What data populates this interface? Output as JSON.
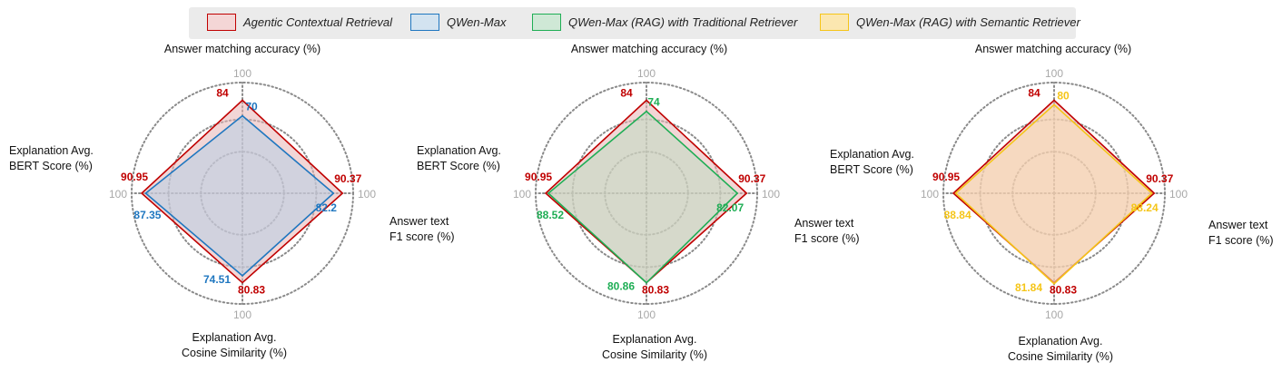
{
  "legend": {
    "items": [
      {
        "label": "Agentic Contextual Retrieval",
        "edge": "#c00000",
        "fill": "#f4d6d6"
      },
      {
        "label": "QWen-Max",
        "edge": "#1f77c0",
        "fill": "#d3e3f0"
      },
      {
        "label": "QWen-Max (RAG) with Traditional Retriever",
        "edge": "#1fae55",
        "fill": "#cfe8d6"
      },
      {
        "label": "QWen-Max (RAG) with Semantic Retriever",
        "edge": "#f5c518",
        "fill": "#fbe7b0"
      }
    ]
  },
  "chart_data": [
    {
      "type": "radar",
      "axes": [
        "Answer matching accuracy (%)",
        "Answer text\nF1 score (%)",
        "Explanation Avg.\nCosine Similarity (%)",
        "Explanation Avg.\nBERT Score (%)"
      ],
      "max_label": "100",
      "range": [
        0,
        100
      ],
      "series": [
        {
          "name": "Agentic Contextual Retrieval",
          "values": [
            84,
            90.37,
            80.83,
            90.95
          ],
          "color": "#c00000",
          "fill": "#e8b4b4"
        },
        {
          "name": "QWen-Max",
          "values": [
            70,
            82.2,
            74.51,
            87.35
          ],
          "color": "#1f77c0",
          "fill": "#b7cfe6"
        }
      ]
    },
    {
      "type": "radar",
      "axes": [
        "Answer matching accuracy (%)",
        "Answer text\nF1 score (%)",
        "Explanation Avg.\nCosine Similarity (%)",
        "Explanation Avg.\nBERT Score (%)"
      ],
      "max_label": "100",
      "range": [
        0,
        100
      ],
      "series": [
        {
          "name": "Agentic Contextual Retrieval",
          "values": [
            84,
            90.37,
            80.83,
            90.95
          ],
          "color": "#c00000",
          "fill": "#e8b4b4"
        },
        {
          "name": "QWen-Max (RAG) with Traditional Retriever",
          "values": [
            74,
            82.07,
            80.86,
            88.52
          ],
          "color": "#1fae55",
          "fill": "#bfdcc2"
        }
      ]
    },
    {
      "type": "radar",
      "axes": [
        "Answer matching accuracy (%)",
        "Answer text\nF1 score (%)",
        "Explanation Avg.\nCosine Similarity (%)",
        "Explanation Avg.\nBERT Score (%)"
      ],
      "max_label": "100",
      "range": [
        0,
        100
      ],
      "series": [
        {
          "name": "Agentic Contextual Retrieval",
          "values": [
            84,
            90.37,
            80.83,
            90.95
          ],
          "color": "#c00000",
          "fill": "#e8b4b4"
        },
        {
          "name": "QWen-Max (RAG) with Semantic Retriever",
          "values": [
            80,
            88.24,
            81.84,
            88.84
          ],
          "color": "#f5c518",
          "fill": "#f9dcae"
        }
      ]
    }
  ]
}
